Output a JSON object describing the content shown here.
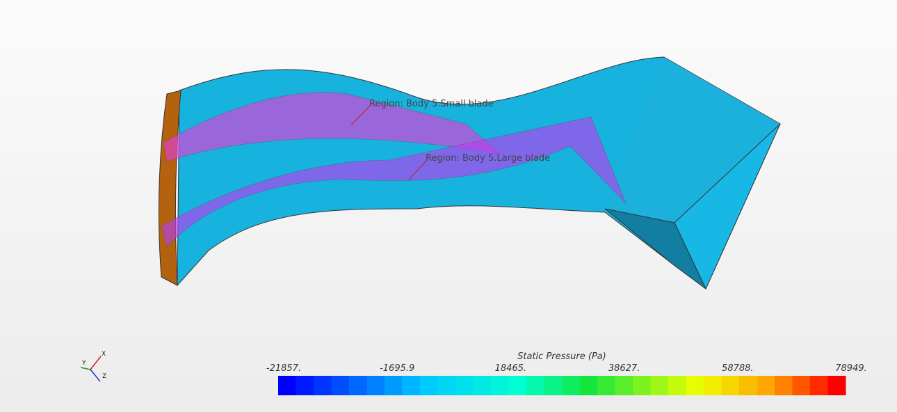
{
  "scene": {
    "annotations": [
      {
        "label": "Region: Body 5.Small blade"
      },
      {
        "label": "Region: Body 5.Large blade"
      }
    ],
    "triad": {
      "x": "X",
      "y": "Y",
      "z": "Z"
    },
    "colorbar": {
      "title": "Static Pressure (Pa)",
      "tick_labels": [
        "-21857.",
        "-1695.9",
        "18465.",
        "38627.",
        "58788.",
        "78949."
      ]
    }
  }
}
